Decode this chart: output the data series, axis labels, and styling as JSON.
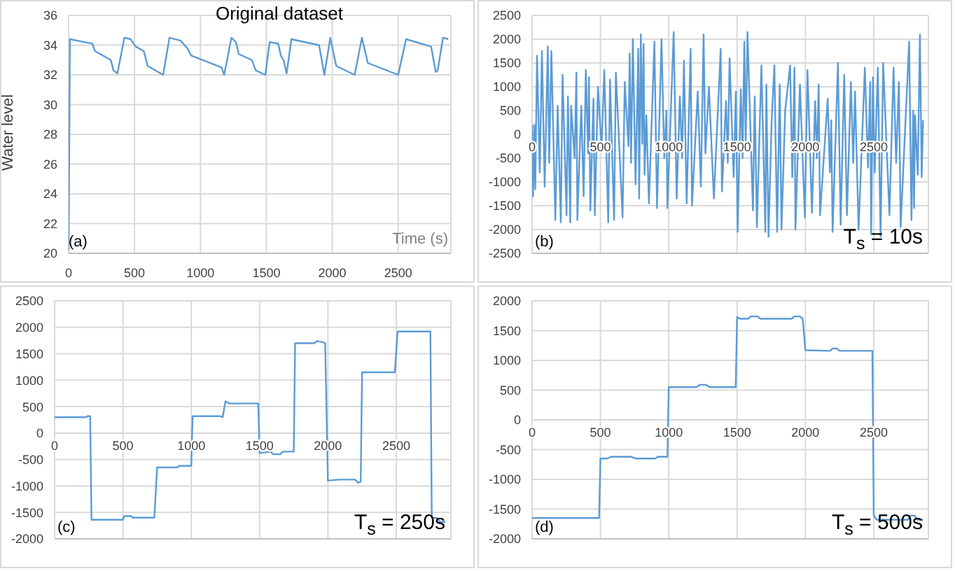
{
  "chart_data": [
    {
      "type": "line",
      "title": "Original dataset",
      "xlabel": "Time (s)",
      "ylabel": "Water level",
      "annotations": [
        "(a)"
      ],
      "color": "#5b9bd5",
      "xlim": [
        0,
        2900
      ],
      "xticks": [
        0,
        500,
        1000,
        1500,
        2000,
        2500
      ],
      "ylim": [
        20,
        36
      ],
      "yticks": [
        20,
        22,
        24,
        26,
        28,
        30,
        32,
        34,
        36
      ],
      "grid": true,
      "x": [
        0,
        10,
        180,
        200,
        320,
        340,
        370,
        423,
        470,
        510,
        570,
        600,
        717,
        765,
        850,
        900,
        930,
        1160,
        1180,
        1235,
        1270,
        1290,
        1390,
        1420,
        1492,
        1525,
        1590,
        1610,
        1630,
        1654,
        1690,
        1900,
        1940,
        1985,
        2030,
        2170,
        2225,
        2270,
        2500,
        2560,
        2750,
        2785,
        2800,
        2840,
        2880
      ],
      "values": [
        20.2,
        34.4,
        34.1,
        33.6,
        33.0,
        32.3,
        32.1,
        34.5,
        34.4,
        33.9,
        33.6,
        32.6,
        32.0,
        34.5,
        34.3,
        33.8,
        33.3,
        32.5,
        32.0,
        34.5,
        34.2,
        33.4,
        33.0,
        32.3,
        32.0,
        34.2,
        34.1,
        33.3,
        33.0,
        32.1,
        34.4,
        34.0,
        32.0,
        34.5,
        32.6,
        32.0,
        34.5,
        32.8,
        32.0,
        34.4,
        33.9,
        32.2,
        32.3,
        34.5,
        34.4
      ]
    },
    {
      "type": "line",
      "annotations": [
        "(b)",
        "T$_{s}$ = 10s"
      ],
      "color": "#5b9bd5",
      "xlim": [
        0,
        2900
      ],
      "xticks": [
        0,
        500,
        1000,
        1500,
        2000,
        2500
      ],
      "ylim": [
        -2500,
        2500
      ],
      "yticks": [
        -2500,
        -2000,
        -1500,
        -1000,
        -500,
        0,
        500,
        1000,
        1500,
        2000,
        2500
      ],
      "grid": true,
      "x": [
        0,
        7,
        16,
        23,
        36,
        56,
        72,
        92,
        115,
        125,
        141,
        170,
        187,
        210,
        223,
        252,
        262,
        279,
        285,
        311,
        324,
        331,
        360,
        377,
        393,
        410,
        416,
        426,
        449,
        459,
        482,
        508,
        528,
        557,
        570,
        600,
        613,
        662,
        678,
        705,
        714,
        724,
        737,
        757,
        777,
        783,
        796,
        806,
        816,
        823,
        836,
        855,
        895,
        914,
        947,
        967,
        983,
        990,
        1036,
        1058,
        1081,
        1098,
        1111,
        1131,
        1160,
        1170,
        1212,
        1235,
        1255,
        1268,
        1294,
        1330,
        1380,
        1389,
        1419,
        1432,
        1445,
        1475,
        1491,
        1504,
        1527,
        1540,
        1553,
        1563,
        1576,
        1616,
        1629,
        1645,
        1678,
        1707,
        1714,
        1730,
        1753,
        1773,
        1793,
        1812,
        1825,
        1852,
        1888,
        1904,
        1920,
        1927,
        1960,
        1996,
        2015,
        2048,
        2071,
        2084,
        2097,
        2107,
        2163,
        2179,
        2189,
        2199,
        2238,
        2258,
        2284,
        2304,
        2333,
        2350,
        2363,
        2389,
        2435,
        2458,
        2474,
        2481,
        2494,
        2507,
        2530,
        2550,
        2569,
        2615,
        2645,
        2664,
        2684,
        2697,
        2759,
        2776,
        2789,
        2795,
        2802,
        2822,
        2838,
        2851,
        2861
      ],
      "values": [
        200,
        -1300,
        200,
        -1150,
        1650,
        -800,
        1750,
        -1100,
        1850,
        -600,
        1750,
        -1800,
        600,
        -1850,
        1250,
        -1700,
        800,
        -1850,
        600,
        -500,
        1300,
        -1800,
        600,
        -1300,
        1350,
        -400,
        1200,
        -1600,
        750,
        -1700,
        1000,
        -300,
        1350,
        -1850,
        1150,
        -1800,
        1300,
        -1750,
        1100,
        -250,
        1700,
        -600,
        2000,
        -1050,
        1800,
        -1350,
        2100,
        -200,
        1900,
        -850,
        400,
        -1450,
        1950,
        -1550,
        2000,
        -500,
        500,
        -1550,
        2150,
        -1350,
        800,
        -500,
        1550,
        -1450,
        1800,
        -1500,
        900,
        -1100,
        2100,
        -400,
        1000,
        -1350,
        1800,
        -1200,
        700,
        -600,
        1600,
        -900,
        900,
        -2050,
        950,
        -500,
        1950,
        -200,
        2150,
        -1600,
        800,
        -1950,
        1450,
        -2050,
        1050,
        -2150,
        300,
        1450,
        -2050,
        1050,
        -2000,
        500,
        1450,
        -900,
        1400,
        -2000,
        1050,
        -1750,
        1350,
        -1650,
        700,
        -500,
        1050,
        -1700,
        750,
        -800,
        300,
        -2050,
        1500,
        -1900,
        1250,
        -1700,
        1100,
        -600,
        900,
        -2000,
        1400,
        -700,
        1100,
        -2100,
        1200,
        -800,
        1400,
        -2150,
        1500,
        -1700,
        1400,
        -600,
        1100,
        -1950,
        1950,
        -1800,
        500,
        -1550,
        400,
        -850,
        2100,
        -900,
        300
      ]
    },
    {
      "type": "line",
      "annotations": [
        "(c)",
        "T$_{s}$ = 250s"
      ],
      "color": "#5b9bd5",
      "xlim": [
        0,
        2900
      ],
      "xticks": [
        0,
        500,
        1000,
        1500,
        2000,
        2500
      ],
      "ylim": [
        -2000,
        2500
      ],
      "yticks": [
        -2000,
        -1500,
        -1000,
        -500,
        0,
        500,
        1000,
        1500,
        2000,
        2500
      ],
      "grid": true,
      "x": [
        0,
        230,
        240,
        260,
        270,
        500,
        510,
        560,
        570,
        730,
        750,
        900,
        910,
        1000,
        1010,
        1210,
        1230,
        1250,
        1280,
        1490,
        1500,
        1580,
        1600,
        1650,
        1670,
        1750,
        1760,
        1900,
        1920,
        1960,
        1980,
        2000,
        2080,
        2200,
        2220,
        2240,
        2250,
        2490,
        2510,
        2750,
        2760,
        2800,
        2820,
        2860
      ],
      "values": [
        300,
        300,
        320,
        320,
        -1640,
        -1640,
        -1570,
        -1570,
        -1600,
        -1600,
        -650,
        -650,
        -620,
        -620,
        320,
        320,
        300,
        600,
        560,
        560,
        -380,
        -350,
        -400,
        -400,
        -350,
        -350,
        1700,
        1700,
        1740,
        1720,
        1700,
        -900,
        -880,
        -880,
        -940,
        -920,
        1150,
        1150,
        1920,
        1920,
        -1600,
        -1610,
        -1680,
        -1680
      ]
    },
    {
      "type": "line",
      "annotations": [
        "(d)",
        "T$_{s}$ = 500s"
      ],
      "color": "#5b9bd5",
      "xlim": [
        0,
        2900
      ],
      "xticks": [
        0,
        500,
        1000,
        1500,
        2000,
        2500
      ],
      "ylim": [
        -2000,
        2000
      ],
      "yticks": [
        -2000,
        -1500,
        -1000,
        -500,
        0,
        500,
        1000,
        1500,
        2000
      ],
      "grid": true,
      "x": [
        0,
        490,
        500,
        550,
        580,
        720,
        760,
        900,
        920,
        990,
        1000,
        1200,
        1230,
        1270,
        1300,
        1490,
        1500,
        1520,
        1580,
        1600,
        1650,
        1670,
        1900,
        1920,
        1960,
        1980,
        2000,
        2180,
        2200,
        2230,
        2250,
        2490,
        2500,
        2520,
        2750,
        2770,
        2800,
        2820,
        2860
      ],
      "values": [
        -1650,
        -1650,
        -650,
        -650,
        -620,
        -620,
        -650,
        -650,
        -620,
        -620,
        550,
        550,
        590,
        590,
        550,
        550,
        1730,
        1700,
        1700,
        1740,
        1740,
        1700,
        1700,
        1740,
        1740,
        1700,
        1170,
        1160,
        1200,
        1200,
        1160,
        1160,
        -1600,
        -1680,
        -1680,
        -1610,
        -1610,
        -1680,
        -1680
      ]
    }
  ]
}
